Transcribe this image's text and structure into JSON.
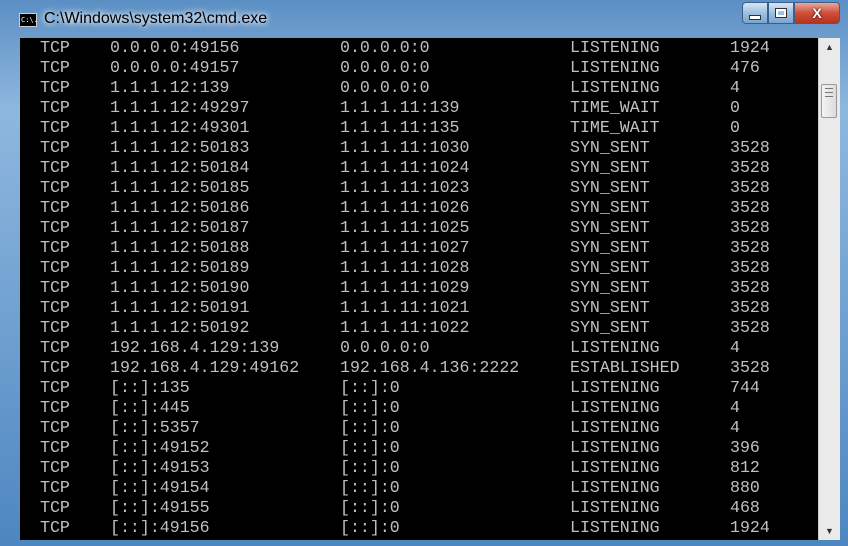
{
  "window": {
    "title": "C:\\Windows\\system32\\cmd.exe",
    "icon": "cmd-icon",
    "icon_text": "C:\\."
  },
  "controls": {
    "minimize": "minimize-icon",
    "maximize": "maximize-icon",
    "close_label": "X"
  },
  "scrollbar": {
    "up": "▲",
    "down": "▼"
  },
  "rows": [
    [
      "TCP",
      "0.0.0.0:49156",
      "0.0.0.0:0",
      "LISTENING",
      "1924"
    ],
    [
      "TCP",
      "0.0.0.0:49157",
      "0.0.0.0:0",
      "LISTENING",
      "476"
    ],
    [
      "TCP",
      "1.1.1.12:139",
      "0.0.0.0:0",
      "LISTENING",
      "4"
    ],
    [
      "TCP",
      "1.1.1.12:49297",
      "1.1.1.11:139",
      "TIME_WAIT",
      "0"
    ],
    [
      "TCP",
      "1.1.1.12:49301",
      "1.1.1.11:135",
      "TIME_WAIT",
      "0"
    ],
    [
      "TCP",
      "1.1.1.12:50183",
      "1.1.1.11:1030",
      "SYN_SENT",
      "3528"
    ],
    [
      "TCP",
      "1.1.1.12:50184",
      "1.1.1.11:1024",
      "SYN_SENT",
      "3528"
    ],
    [
      "TCP",
      "1.1.1.12:50185",
      "1.1.1.11:1023",
      "SYN_SENT",
      "3528"
    ],
    [
      "TCP",
      "1.1.1.12:50186",
      "1.1.1.11:1026",
      "SYN_SENT",
      "3528"
    ],
    [
      "TCP",
      "1.1.1.12:50187",
      "1.1.1.11:1025",
      "SYN_SENT",
      "3528"
    ],
    [
      "TCP",
      "1.1.1.12:50188",
      "1.1.1.11:1027",
      "SYN_SENT",
      "3528"
    ],
    [
      "TCP",
      "1.1.1.12:50189",
      "1.1.1.11:1028",
      "SYN_SENT",
      "3528"
    ],
    [
      "TCP",
      "1.1.1.12:50190",
      "1.1.1.11:1029",
      "SYN_SENT",
      "3528"
    ],
    [
      "TCP",
      "1.1.1.12:50191",
      "1.1.1.11:1021",
      "SYN_SENT",
      "3528"
    ],
    [
      "TCP",
      "1.1.1.12:50192",
      "1.1.1.11:1022",
      "SYN_SENT",
      "3528"
    ],
    [
      "TCP",
      "192.168.4.129:139",
      "0.0.0.0:0",
      "LISTENING",
      "4"
    ],
    [
      "TCP",
      "192.168.4.129:49162",
      "192.168.4.136:2222",
      "ESTABLISHED",
      "3528"
    ],
    [
      "TCP",
      "[::]:135",
      "[::]:0",
      "LISTENING",
      "744"
    ],
    [
      "TCP",
      "[::]:445",
      "[::]:0",
      "LISTENING",
      "4"
    ],
    [
      "TCP",
      "[::]:5357",
      "[::]:0",
      "LISTENING",
      "4"
    ],
    [
      "TCP",
      "[::]:49152",
      "[::]:0",
      "LISTENING",
      "396"
    ],
    [
      "TCP",
      "[::]:49153",
      "[::]:0",
      "LISTENING",
      "812"
    ],
    [
      "TCP",
      "[::]:49154",
      "[::]:0",
      "LISTENING",
      "880"
    ],
    [
      "TCP",
      "[::]:49155",
      "[::]:0",
      "LISTENING",
      "468"
    ],
    [
      "TCP",
      "[::]:49156",
      "[::]:0",
      "LISTENING",
      "1924"
    ]
  ]
}
